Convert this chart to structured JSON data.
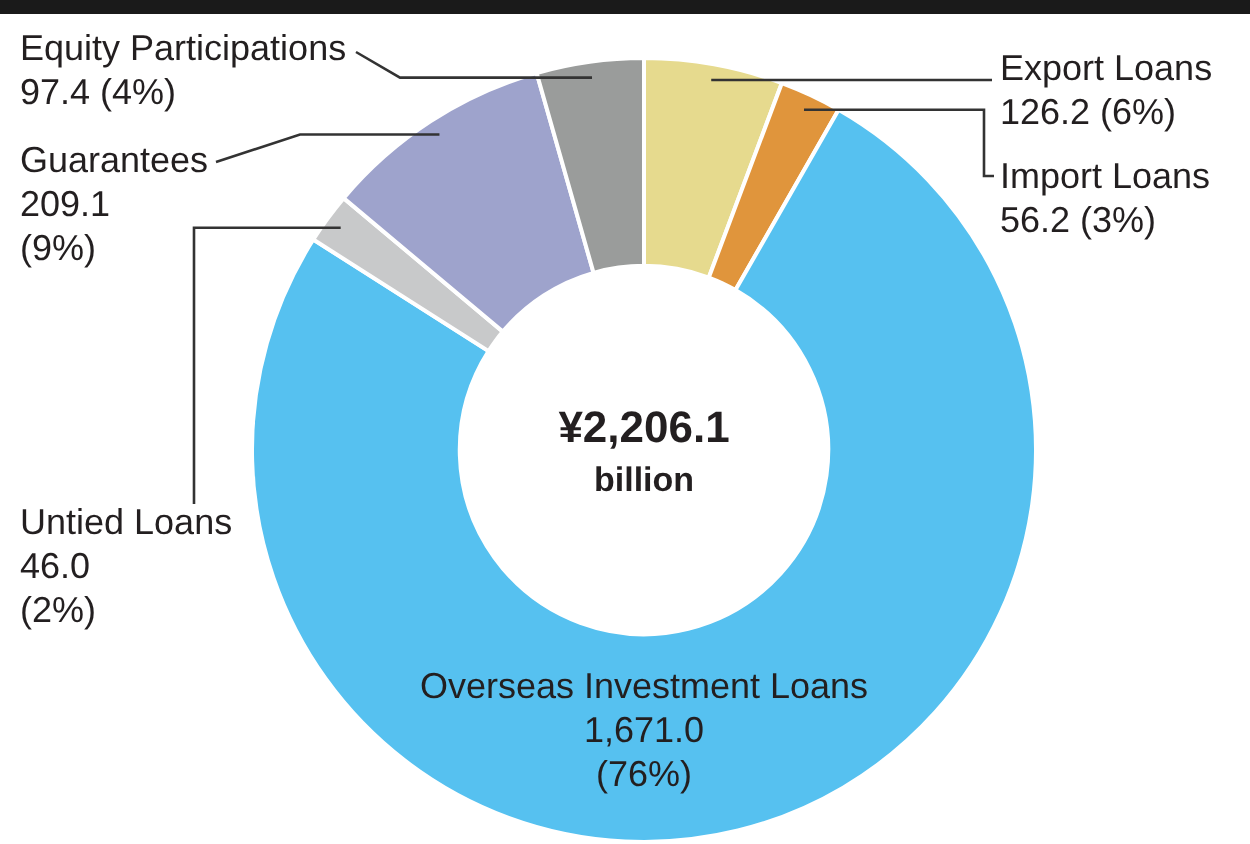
{
  "chart_data": {
    "type": "donut",
    "categories": [
      "Export Loans",
      "Import Loans",
      "Overseas Investment Loans",
      "Untied Loans",
      "Guarantees",
      "Equity Participations"
    ],
    "values": [
      126.2,
      56.2,
      1671.0,
      46.0,
      209.1,
      97.4
    ],
    "value_labels": [
      "126.2 (6%)",
      "56.2 (3%)",
      "1,671.0 (76%)",
      "46.0 (2%)",
      "209.1 (9%)",
      "97.4 (4%)"
    ],
    "colors": [
      "#e6da8e",
      "#e0953c",
      "#56c1f0",
      "#c8c9ca",
      "#9ea3cc",
      "#9a9c9b"
    ],
    "annotations": [
      "¥2,206.1",
      "billion"
    ],
    "legend": false
  }
}
